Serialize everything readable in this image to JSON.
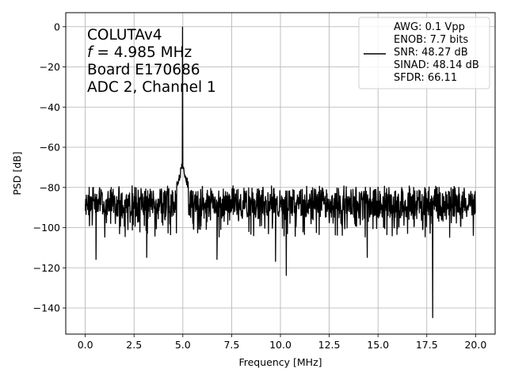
{
  "chart_data": {
    "type": "line",
    "xlabel": "Frequency [MHz]",
    "ylabel": "PSD [dB]",
    "xlim": [
      -1.0,
      21.0
    ],
    "ylim": [
      -153,
      7
    ],
    "x_ticks": [
      0.0,
      2.5,
      5.0,
      7.5,
      10.0,
      12.5,
      15.0,
      17.5,
      20.0
    ],
    "x_tick_labels": [
      "0.0",
      "2.5",
      "5.0",
      "7.5",
      "10.0",
      "12.5",
      "15.0",
      "17.5",
      "20.0"
    ],
    "y_ticks": [
      0,
      -20,
      -40,
      -60,
      -80,
      -100,
      -120,
      -140
    ],
    "y_tick_labels": [
      "0",
      "−20",
      "−40",
      "−60",
      "−80",
      "−100",
      "−120",
      "−140"
    ],
    "grid": true,
    "annotation": [
      {
        "text": "COLUTAv4"
      },
      {
        "italic": "f",
        "text": " = 4.985 MHz"
      },
      {
        "text": "Board E170686"
      },
      {
        "text": "ADC 2, Channel 1"
      }
    ],
    "legend": {
      "placement": "top-right",
      "lines": [
        "AWG: 0.1 Vpp",
        "ENOB: 7.7 bits",
        "SNR: 48.27 dB",
        "SINAD: 48.14 dB",
        "SFDR: 66.11"
      ]
    },
    "series": [
      {
        "color": "#000000",
        "signal_freq": 4.985,
        "signal_peak_db": 0,
        "noise_floor_range_db": [
          -105,
          -76
        ],
        "spurs": [
          {
            "x": 0.55,
            "y": -116
          },
          {
            "x": 3.15,
            "y": -115
          },
          {
            "x": 6.75,
            "y": -116
          },
          {
            "x": 9.75,
            "y": -117
          },
          {
            "x": 10.3,
            "y": -124
          },
          {
            "x": 14.45,
            "y": -115
          },
          {
            "x": 17.8,
            "y": -145
          }
        ]
      }
    ]
  }
}
